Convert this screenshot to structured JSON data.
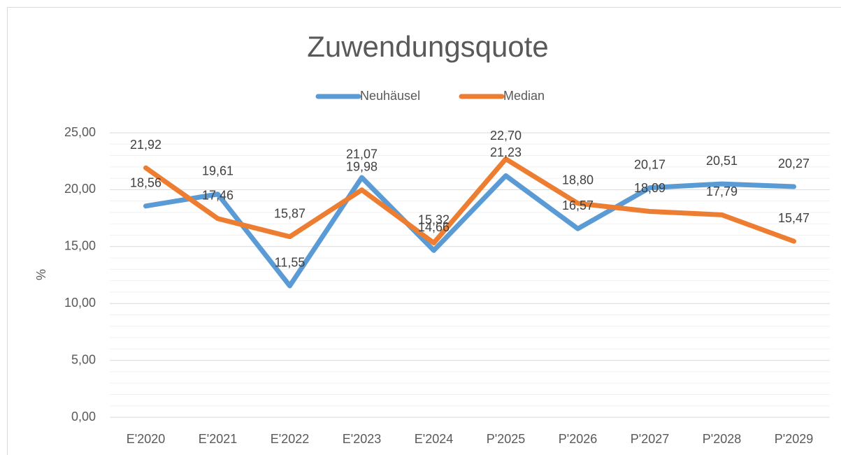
{
  "chart_data": {
    "type": "line",
    "title": "Zuwendungsquote",
    "ylabel": "%",
    "categories": [
      "E'2020",
      "E'2021",
      "E'2022",
      "E'2023",
      "E'2024",
      "P'2025",
      "P'2026",
      "P'2027",
      "P'2028",
      "P'2029"
    ],
    "series": [
      {
        "name": "Neuhäusel",
        "color": "#5b9bd5",
        "values": [
          18.56,
          19.61,
          11.55,
          21.07,
          14.66,
          21.23,
          16.57,
          20.17,
          20.51,
          20.27
        ],
        "value_labels": [
          "18,56",
          "19,61",
          "11,55",
          "21,07",
          "14,66",
          "21,23",
          "16,57",
          "20,17",
          "20,51",
          "20,27"
        ]
      },
      {
        "name": "Median",
        "color": "#ed7d31",
        "values": [
          21.92,
          17.46,
          15.87,
          19.98,
          15.32,
          22.7,
          18.8,
          18.09,
          17.79,
          15.47
        ],
        "value_labels": [
          "21,92",
          "17,46",
          "15,87",
          "19,98",
          "15,32",
          "22,70",
          "18,80",
          "18,09",
          "17,79",
          "15,47"
        ]
      }
    ],
    "ylim": [
      0,
      25
    ],
    "yticks": [
      {
        "value": 0,
        "label": "0,00"
      },
      {
        "value": 5,
        "label": "5,00"
      },
      {
        "value": 10,
        "label": "10,00"
      },
      {
        "value": 15,
        "label": "15,00"
      },
      {
        "value": 20,
        "label": "20,00"
      },
      {
        "value": 25,
        "label": "25,00"
      }
    ],
    "yminorticks": [
      1,
      2,
      3,
      4,
      6,
      7,
      8,
      9,
      11,
      12,
      13,
      14,
      16,
      17,
      18,
      19,
      21,
      22,
      23,
      24
    ],
    "grid": true,
    "legend": "top"
  }
}
